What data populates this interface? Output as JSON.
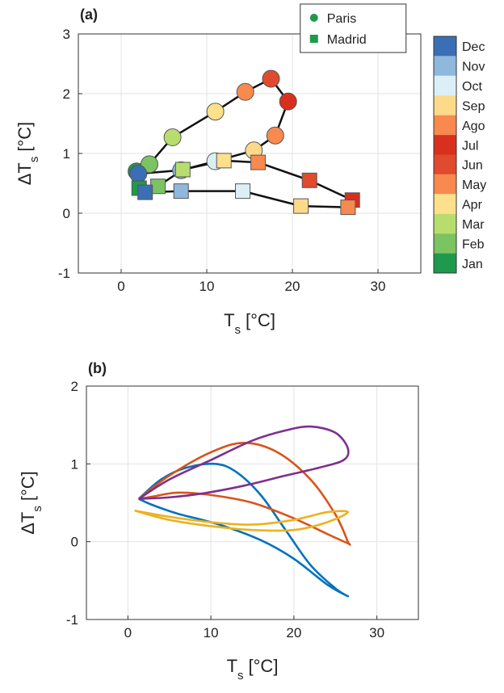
{
  "chart_data": [
    {
      "type": "line",
      "panel_label": "(a)",
      "x_label": [
        "T",
        "s",
        "[°C]"
      ],
      "y_label": [
        "ΔT",
        "s",
        "[°C]"
      ],
      "xlim": [
        -5,
        35
      ],
      "xticks": [
        0,
        10,
        20,
        30
      ],
      "ylim": [
        -1,
        3
      ],
      "yticks": [
        -1,
        0,
        1,
        2,
        3
      ],
      "grid": true,
      "line_color": "#111111",
      "closed": true,
      "legend": "top",
      "colorbar": {
        "labels": [
          "Dec",
          "Nov",
          "Oct",
          "Sep",
          "Ago",
          "Jul",
          "Jun",
          "May",
          "Apr",
          "Mar",
          "Feb",
          "Jan"
        ],
        "colors": [
          "#3a6fb6",
          "#8fb8dd",
          "#dceff7",
          "#fdd98a",
          "#f8894f",
          "#d7301f",
          "#e04a2e",
          "#f8894f",
          "#fde08b",
          "#b8dd6f",
          "#7cc361",
          "#1f9a4d"
        ]
      },
      "series": [
        {
          "name": "Paris",
          "marker": "circle",
          "legend_color": "#1f9a4d",
          "x": [
            1.8,
            3.3,
            6,
            11,
            14.5,
            17.5,
            19.5,
            18,
            15.5,
            11,
            7,
            2
          ],
          "values": [
            0.7,
            0.82,
            1.27,
            1.7,
            2.03,
            2.25,
            1.87,
            1.3,
            1.05,
            0.87,
            0.72,
            0.66
          ]
        },
        {
          "name": "Madrid",
          "marker": "square",
          "legend_color": "#1f9a4d",
          "x": [
            2.1,
            4.3,
            7.2,
            12,
            16,
            22,
            27,
            26.5,
            21,
            14.2,
            7,
            2.8
          ],
          "values": [
            0.42,
            0.45,
            0.73,
            0.88,
            0.85,
            0.55,
            0.22,
            0.1,
            0.12,
            0.37,
            0.37,
            0.35
          ]
        }
      ]
    },
    {
      "type": "line",
      "panel_label": "(b)",
      "x_label": [
        "T",
        "s",
        "[°C]"
      ],
      "y_label": [
        "ΔT",
        "s",
        "[°C]"
      ],
      "xlim": [
        -5,
        35
      ],
      "xticks": [
        0,
        10,
        20,
        30
      ],
      "ylim": [
        -1,
        2
      ],
      "yticks": [
        -1,
        0,
        1,
        2
      ],
      "grid": true,
      "series": [
        {
          "color": "#0072bd",
          "x": [
            1.3,
            4,
            7,
            10.5,
            13,
            16,
            19,
            22,
            25,
            26.5,
            24,
            20,
            16,
            11,
            6,
            3,
            1.3
          ],
          "values": [
            0.55,
            0.8,
            0.95,
            1.0,
            0.9,
            0.6,
            0.15,
            -0.3,
            -0.6,
            -0.7,
            -0.55,
            -0.22,
            0.02,
            0.22,
            0.36,
            0.47,
            0.55
          ]
        },
        {
          "color": "#d95319",
          "x": [
            1.3,
            5,
            10,
            14,
            18,
            22,
            25,
            26.5,
            26.5,
            24,
            20,
            15,
            10,
            6,
            3,
            1.3
          ],
          "values": [
            0.55,
            0.85,
            1.15,
            1.27,
            1.15,
            0.8,
            0.35,
            0.0,
            -0.02,
            0.1,
            0.3,
            0.5,
            0.6,
            0.63,
            0.58,
            0.55
          ]
        },
        {
          "color": "#edb120",
          "x": [
            0.8,
            5,
            10,
            15,
            20,
            24,
            26.5,
            24,
            20,
            15,
            10,
            5,
            0.8
          ],
          "values": [
            0.4,
            0.28,
            0.2,
            0.15,
            0.15,
            0.25,
            0.38,
            0.38,
            0.28,
            0.22,
            0.25,
            0.32,
            0.4
          ]
        },
        {
          "color": "#7e2f8e",
          "x": [
            1.3,
            5,
            10,
            15,
            19,
            22,
            25,
            26.5,
            26,
            23,
            19,
            14,
            9,
            5,
            1.3
          ],
          "values": [
            0.55,
            0.8,
            1.05,
            1.3,
            1.43,
            1.48,
            1.4,
            1.2,
            1.05,
            0.95,
            0.85,
            0.72,
            0.62,
            0.57,
            0.55
          ]
        }
      ]
    }
  ]
}
